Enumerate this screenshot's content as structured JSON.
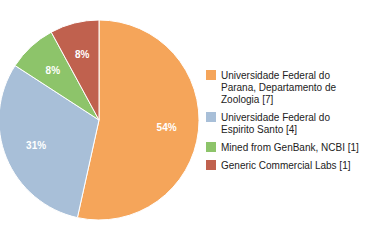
{
  "chart_data": {
    "type": "pie",
    "categories": [
      "Universidade Federal do\nParana, Departamento de\nZoologia [7]",
      "Universidade Federal do\nEspirito Santo [4]",
      "Mined from GenBank, NCBI [1]",
      "Generic Commercial Labs [1]"
    ],
    "values": [
      54,
      31,
      8,
      8
    ],
    "value_labels": [
      "54%",
      "31%",
      "8%",
      "8%"
    ],
    "colors": [
      "#f5a55a",
      "#a8bfd8",
      "#8dc46a",
      "#c0614e"
    ],
    "data_labels": true,
    "legend": "right"
  }
}
